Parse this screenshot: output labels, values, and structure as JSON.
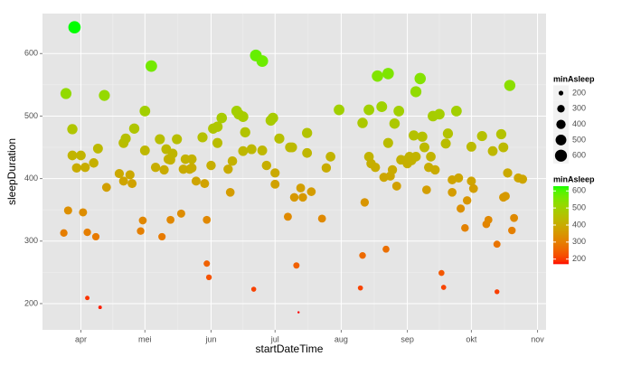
{
  "chart_data": {
    "type": "scatter",
    "x_label": "startDateTime",
    "y_label": "sleepDuration",
    "x": [
      83,
      84,
      85,
      87,
      87,
      88,
      89,
      91,
      92,
      93,
      94,
      94,
      97,
      98,
      99,
      100,
      102,
      103,
      109,
      111,
      111,
      112,
      114,
      115,
      116,
      119,
      120,
      121,
      121,
      124,
      126,
      128,
      129,
      130,
      131,
      132,
      133,
      133,
      134,
      136,
      138,
      139,
      140,
      142,
      143,
      143,
      145,
      148,
      149,
      150,
      150,
      151,
      152,
      153,
      155,
      155,
      157,
      160,
      161,
      162,
      164,
      165,
      167,
      167,
      168,
      171,
      172,
      173,
      176,
      176,
      178,
      180,
      181,
      182,
      182,
      184,
      188,
      189,
      190,
      191,
      192,
      193,
      194,
      195,
      197,
      197,
      199,
      204,
      206,
      208,
      212,
      222,
      223,
      223,
      224,
      226,
      226,
      227,
      229,
      230,
      232,
      233,
      234,
      235,
      235,
      236,
      237,
      238,
      239,
      240,
      241,
      243,
      244,
      245,
      246,
      247,
      248,
      248,
      250,
      251,
      252,
      253,
      254,
      255,
      256,
      257,
      259,
      260,
      261,
      262,
      263,
      265,
      265,
      267,
      268,
      269,
      271,
      272,
      274,
      274,
      275,
      279,
      281,
      282,
      284,
      286,
      286,
      288,
      289,
      289,
      290,
      291,
      292,
      293,
      294,
      296,
      298
    ],
    "values": [
      313,
      536,
      349,
      437,
      479,
      642,
      417,
      437,
      346,
      418,
      314,
      209,
      425,
      307,
      448,
      194,
      533,
      386,
      408,
      457,
      396,
      464,
      406,
      392,
      480,
      316,
      333,
      445,
      508,
      580,
      418,
      463,
      307,
      414,
      447,
      431,
      430,
      334,
      440,
      463,
      344,
      415,
      431,
      415,
      431,
      417,
      396,
      466,
      392,
      334,
      264,
      242,
      421,
      480,
      457,
      483,
      497,
      415,
      378,
      428,
      508,
      503,
      499,
      444,
      474,
      447,
      223,
      597,
      588,
      445,
      421,
      493,
      497,
      409,
      391,
      464,
      339,
      450,
      450,
      370,
      261,
      186,
      385,
      370,
      473,
      441,
      379,
      336,
      417,
      435,
      510,
      225,
      489,
      277,
      362,
      510,
      435,
      424,
      418,
      564,
      515,
      402,
      287,
      568,
      457,
      404,
      414,
      488,
      388,
      508,
      430,
      429,
      424,
      435,
      429,
      469,
      539,
      435,
      560,
      467,
      450,
      382,
      418,
      435,
      500,
      414,
      503,
      249,
      226,
      456,
      472,
      378,
      398,
      508,
      401,
      352,
      321,
      365,
      396,
      451,
      384,
      468,
      327,
      334,
      444,
      295,
      219,
      471,
      450,
      370,
      372,
      409,
      549,
      317,
      337,
      401,
      399
    ],
    "minAsleep": [
      299,
      522,
      335,
      423,
      465,
      628,
      403,
      423,
      332,
      404,
      300,
      195,
      411,
      293,
      434,
      180,
      519,
      372,
      394,
      443,
      382,
      450,
      392,
      378,
      466,
      302,
      319,
      431,
      494,
      566,
      404,
      449,
      293,
      400,
      433,
      417,
      416,
      320,
      426,
      449,
      330,
      401,
      417,
      401,
      417,
      403,
      382,
      452,
      378,
      320,
      250,
      228,
      407,
      466,
      443,
      469,
      483,
      401,
      364,
      414,
      494,
      489,
      485,
      430,
      460,
      433,
      209,
      583,
      574,
      431,
      407,
      479,
      483,
      395,
      377,
      450,
      325,
      436,
      436,
      356,
      247,
      172,
      371,
      356,
      459,
      427,
      365,
      322,
      403,
      421,
      496,
      211,
      475,
      263,
      348,
      496,
      421,
      410,
      404,
      550,
      501,
      388,
      273,
      554,
      443,
      390,
      400,
      474,
      374,
      494,
      416,
      415,
      410,
      421,
      415,
      455,
      525,
      421,
      546,
      453,
      436,
      368,
      404,
      421,
      486,
      400,
      489,
      235,
      212,
      442,
      458,
      364,
      384,
      494,
      387,
      338,
      307,
      351,
      382,
      437,
      370,
      454,
      313,
      320,
      430,
      281,
      205,
      457,
      436,
      356,
      358,
      395,
      535,
      303,
      323,
      387,
      385
    ],
    "xlim": [
      73,
      309
    ],
    "xticks": [
      {
        "value": 91,
        "label": "apr"
      },
      {
        "value": 121,
        "label": "mei"
      },
      {
        "value": 152,
        "label": "jun"
      },
      {
        "value": 182,
        "label": "jul"
      },
      {
        "value": 213,
        "label": "aug"
      },
      {
        "value": 244,
        "label": "sep"
      },
      {
        "value": 274,
        "label": "okt"
      },
      {
        "value": 305,
        "label": "nov"
      }
    ],
    "ylim": [
      158,
      664
    ],
    "yticks": [
      200,
      300,
      400,
      500,
      600
    ],
    "grid": true,
    "size_title": "minAsleep",
    "size_legend": [
      200,
      300,
      400,
      500,
      600
    ],
    "color_title": "minAsleep",
    "color_legend": [
      200,
      300,
      400,
      500,
      600
    ],
    "scale_range": [
      172,
      628
    ],
    "color_low": "#ff0000",
    "color_high": "#00ff00"
  }
}
